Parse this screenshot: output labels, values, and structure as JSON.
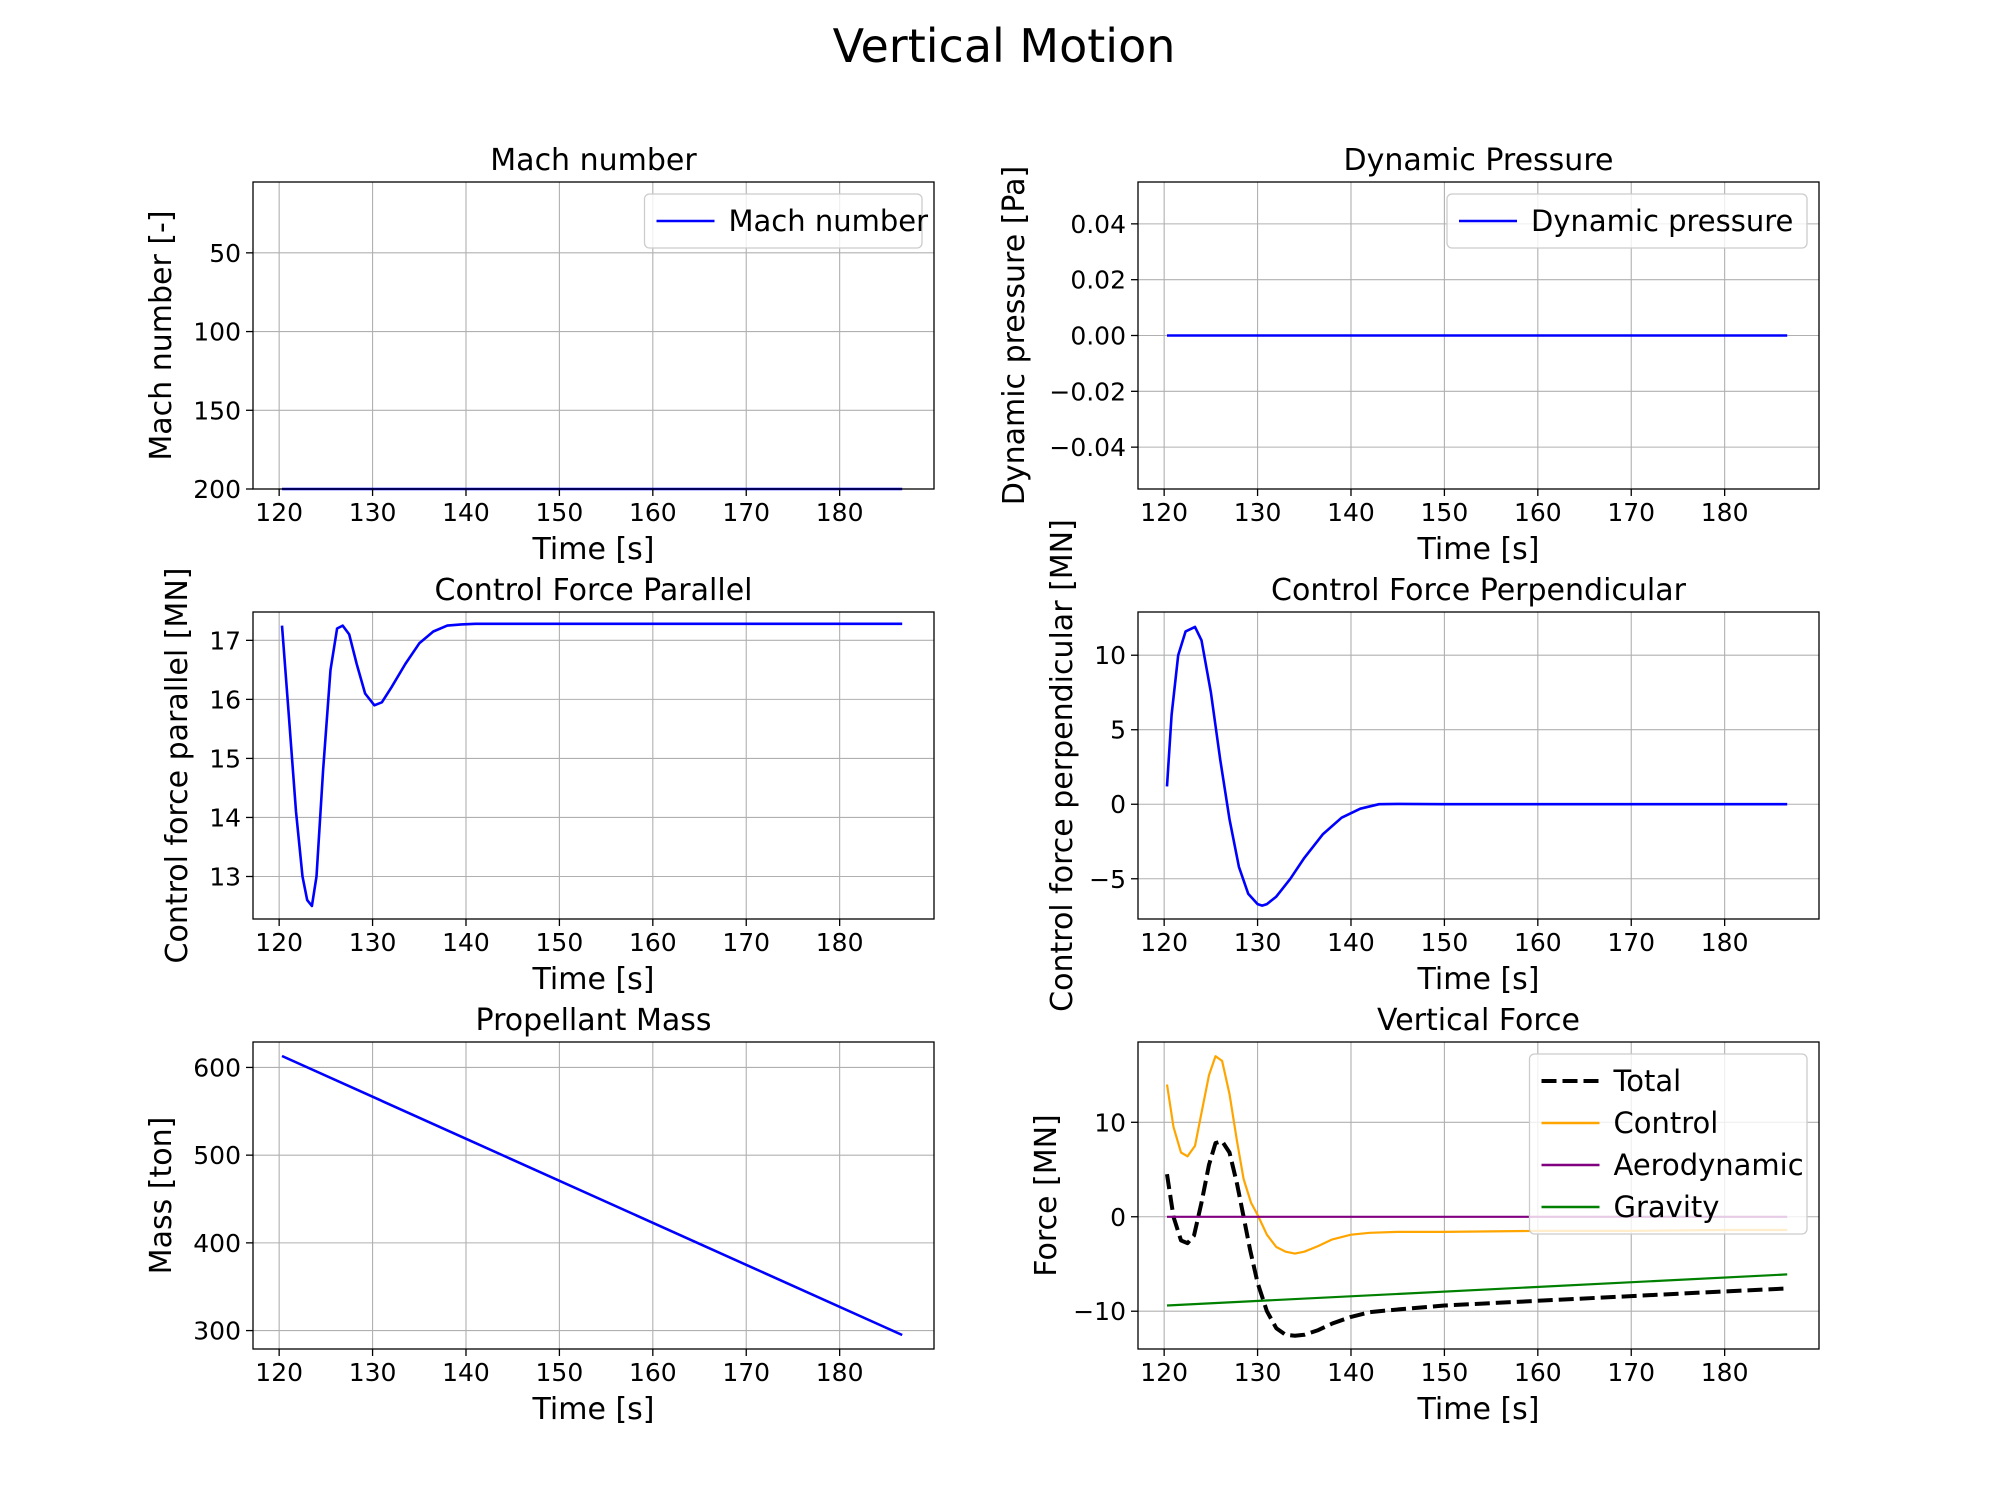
{
  "figure_title": "Vertical Motion",
  "chart_data": [
    {
      "id": "mach",
      "type": "line",
      "title": "Mach number",
      "xlabel": "Time [s]",
      "ylabel": "Mach number [-]",
      "xlim": [
        117.2,
        190.1
      ],
      "ylim": [
        5,
        200
      ],
      "y_inverted": true,
      "xticks": [
        120,
        130,
        140,
        150,
        160,
        170,
        180
      ],
      "yticks": [
        50,
        100,
        150,
        200
      ],
      "ytick_labels": [
        "50",
        "100",
        "150",
        "200"
      ],
      "grid": true,
      "legend": {
        "position": "top-right",
        "entries": [
          "Mach number"
        ]
      },
      "series": [
        {
          "name": "Mach number",
          "color": "#0000ff",
          "style": "solid",
          "x": [
            120.3,
            186.7
          ],
          "y": [
            200,
            200
          ]
        }
      ]
    },
    {
      "id": "dynamic-pressure",
      "type": "line",
      "title": "Dynamic Pressure",
      "xlabel": "Time [s]",
      "ylabel": "Dynamic pressure [Pa]",
      "xlim": [
        117.2,
        190.1
      ],
      "ylim": [
        -0.055,
        0.055
      ],
      "xticks": [
        120,
        130,
        140,
        150,
        160,
        170,
        180
      ],
      "yticks": [
        0.04,
        0.02,
        0.0,
        -0.02,
        -0.04
      ],
      "ytick_labels": [
        "0.04",
        "0.02",
        "0.00",
        "−0.02",
        "−0.04"
      ],
      "grid": true,
      "legend": {
        "position": "top-right",
        "entries": [
          "Dynamic pressure"
        ]
      },
      "series": [
        {
          "name": "Dynamic pressure",
          "color": "#0000ff",
          "style": "solid",
          "x": [
            120.3,
            186.7
          ],
          "y": [
            0,
            0
          ]
        }
      ]
    },
    {
      "id": "control-parallel",
      "type": "line",
      "title": "Control Force Parallel",
      "xlabel": "Time [s]",
      "ylabel": "Control force parallel [MN]",
      "xlim": [
        117.2,
        190.1
      ],
      "ylim": [
        12.28,
        17.48
      ],
      "xticks": [
        120,
        130,
        140,
        150,
        160,
        170,
        180
      ],
      "yticks": [
        17,
        16,
        15,
        14,
        13
      ],
      "ytick_labels": [
        "17",
        "16",
        "15",
        "14",
        "13"
      ],
      "grid": true,
      "series": [
        {
          "name": "",
          "color": "#0000ff",
          "style": "solid",
          "x": [
            120.3,
            121.0,
            121.8,
            122.5,
            123.0,
            123.5,
            124.0,
            124.7,
            125.5,
            126.2,
            126.8,
            127.5,
            128.3,
            129.2,
            130.2,
            131.0,
            132.0,
            133.5,
            135.0,
            136.5,
            138.0,
            139.5,
            141.0,
            143.0,
            146.0,
            150.0,
            160.0,
            170.0,
            180.0,
            186.7
          ],
          "y": [
            17.25,
            15.8,
            14.1,
            13.0,
            12.6,
            12.5,
            13.0,
            14.8,
            16.5,
            17.2,
            17.25,
            17.1,
            16.6,
            16.1,
            15.9,
            15.95,
            16.2,
            16.6,
            16.95,
            17.15,
            17.25,
            17.27,
            17.28,
            17.28,
            17.28,
            17.28,
            17.28,
            17.28,
            17.28,
            17.28
          ]
        }
      ]
    },
    {
      "id": "control-perpendicular",
      "type": "line",
      "title": "Control Force Perpendicular",
      "xlabel": "Time [s]",
      "ylabel": "Control force perpendicular [MN]",
      "xlim": [
        117.2,
        190.1
      ],
      "ylim": [
        -7.7,
        12.9
      ],
      "xticks": [
        120,
        130,
        140,
        150,
        160,
        170,
        180
      ],
      "yticks": [
        10,
        5,
        0,
        -5
      ],
      "ytick_labels": [
        "10",
        "5",
        "0",
        "−5"
      ],
      "grid": true,
      "series": [
        {
          "name": "",
          "color": "#0000ff",
          "style": "solid",
          "x": [
            120.3,
            120.8,
            121.5,
            122.3,
            123.3,
            124.0,
            125.0,
            126.0,
            127.0,
            128.0,
            129.0,
            130.0,
            130.5,
            131.0,
            132.0,
            133.5,
            135.0,
            137.0,
            139.0,
            141.0,
            143.0,
            145.0,
            150.0,
            160.0,
            170.0,
            180.0,
            186.7
          ],
          "y": [
            1.2,
            6.0,
            10.0,
            11.6,
            11.9,
            11.0,
            7.5,
            3.0,
            -1.0,
            -4.2,
            -6.0,
            -6.7,
            -6.8,
            -6.7,
            -6.2,
            -5.0,
            -3.6,
            -2.0,
            -0.9,
            -0.3,
            0.0,
            0.02,
            0.0,
            0.0,
            0.0,
            0.0,
            0.0
          ]
        }
      ]
    },
    {
      "id": "propellant-mass",
      "type": "line",
      "title": "Propellant Mass",
      "xlabel": "Time [s]",
      "ylabel": "Mass [ton]",
      "xlim": [
        117.2,
        190.1
      ],
      "ylim": [
        279,
        629
      ],
      "xticks": [
        120,
        130,
        140,
        150,
        160,
        170,
        180
      ],
      "yticks": [
        600,
        500,
        400,
        300
      ],
      "ytick_labels": [
        "600",
        "500",
        "400",
        "300"
      ],
      "grid": true,
      "series": [
        {
          "name": "",
          "color": "#0000ff",
          "style": "solid",
          "x": [
            120.3,
            186.7
          ],
          "y": [
            613,
            295
          ]
        }
      ]
    },
    {
      "id": "vertical-force",
      "type": "line",
      "title": "Vertical Force",
      "xlabel": "Time [s]",
      "ylabel": "Force [MN]",
      "xlim": [
        117.2,
        190.1
      ],
      "ylim": [
        -14.0,
        18.5
      ],
      "xticks": [
        120,
        130,
        140,
        150,
        160,
        170,
        180
      ],
      "yticks": [
        10,
        0,
        -10
      ],
      "ytick_labels": [
        "10",
        "0",
        "−10"
      ],
      "grid": true,
      "legend": {
        "position": "top-right",
        "entries": [
          "Total",
          "Control",
          "Aerodynamic",
          "Gravity"
        ]
      },
      "series": [
        {
          "name": "Total",
          "color": "#000000",
          "style": "dashed",
          "x": [
            120.3,
            121.0,
            121.8,
            122.5,
            123.2,
            124.0,
            124.8,
            125.5,
            126.2,
            127.0,
            127.8,
            128.5,
            129.2,
            130.0,
            131.0,
            132.0,
            133.0,
            134.0,
            135.0,
            136.5,
            138.0,
            140.0,
            142.0,
            144.0,
            150.0,
            160.0,
            170.0,
            180.0,
            186.7
          ],
          "y": [
            4.5,
            0.0,
            -2.5,
            -2.8,
            -2.0,
            1.5,
            5.5,
            7.8,
            8.0,
            6.8,
            3.5,
            0.0,
            -3.5,
            -7.0,
            -10.0,
            -11.8,
            -12.5,
            -12.6,
            -12.5,
            -12.0,
            -11.3,
            -10.6,
            -10.1,
            -9.9,
            -9.4,
            -8.9,
            -8.4,
            -7.9,
            -7.6
          ]
        },
        {
          "name": "Control",
          "color": "#ffa500",
          "style": "solid",
          "x": [
            120.3,
            121.0,
            121.8,
            122.5,
            123.3,
            124.0,
            124.8,
            125.5,
            126.2,
            127.0,
            127.8,
            128.5,
            129.3,
            130.0,
            131.0,
            132.0,
            133.0,
            134.0,
            135.0,
            136.5,
            138.0,
            140.0,
            142.0,
            145.0,
            150.0,
            160.0,
            170.0,
            180.0,
            186.7
          ],
          "y": [
            14.0,
            9.5,
            6.8,
            6.4,
            7.5,
            11.0,
            15.0,
            17.0,
            16.5,
            13.0,
            8.0,
            4.0,
            1.5,
            0.2,
            -1.9,
            -3.2,
            -3.7,
            -3.9,
            -3.7,
            -3.1,
            -2.4,
            -1.9,
            -1.7,
            -1.6,
            -1.6,
            -1.5,
            -1.5,
            -1.4,
            -1.4
          ]
        },
        {
          "name": "Aerodynamic",
          "color": "#800080",
          "style": "solid",
          "x": [
            120.3,
            186.7
          ],
          "y": [
            0,
            0
          ]
        },
        {
          "name": "Gravity",
          "color": "#008000",
          "style": "solid",
          "x": [
            120.3,
            186.7
          ],
          "y": [
            -9.4,
            -6.1
          ]
        }
      ]
    }
  ]
}
